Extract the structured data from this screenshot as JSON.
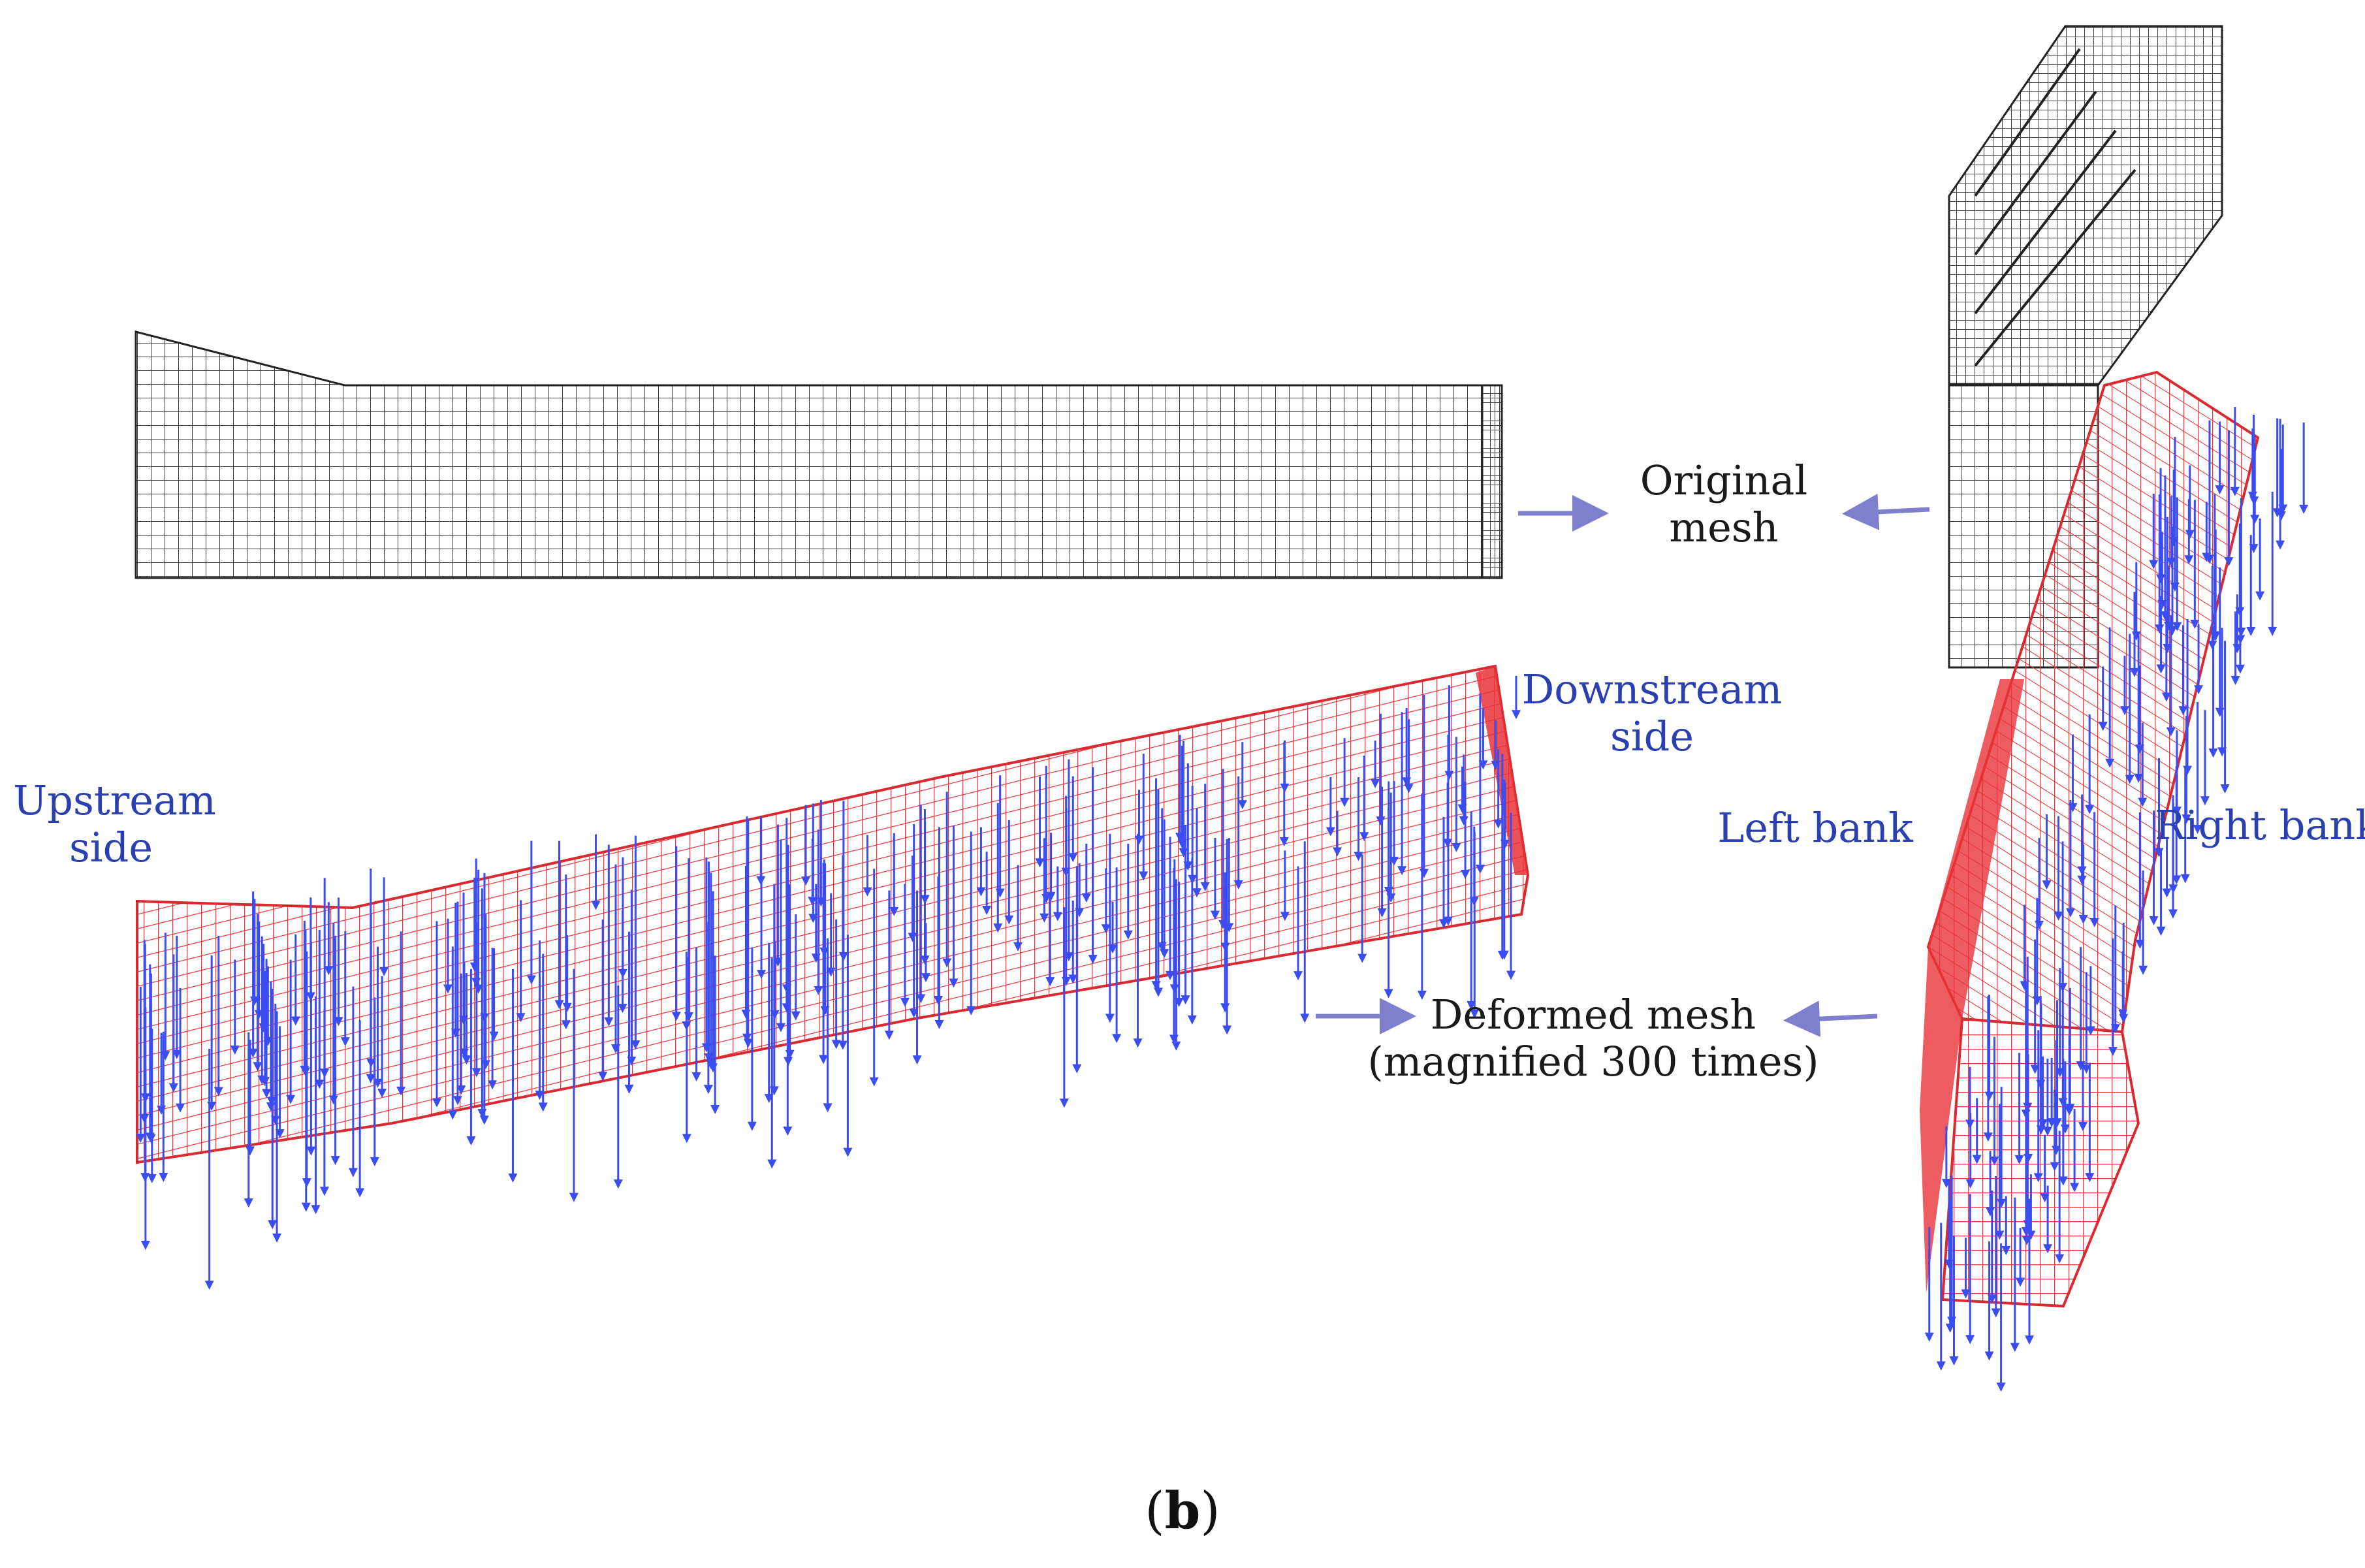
{
  "labels": {
    "original_mesh": [
      "Original",
      "mesh"
    ],
    "deformed_mesh": [
      "Deformed mesh",
      "(magnified 300 times)"
    ],
    "upstream_side": [
      "Upstream",
      "side"
    ],
    "downstream_side": [
      "Downstream",
      "side"
    ],
    "left_bank": "Left bank",
    "right_bank": "Right bank"
  },
  "caption": {
    "open": "(",
    "letter": "b",
    "close": ")"
  },
  "colors": {
    "original_mesh_line": "#3a3a3a",
    "deformed_mesh_line": "#e8333a",
    "displacement_arrow": "#3b4cf0",
    "pointer_arrow": "#7f7fce",
    "label_blue": "#2a3fb0"
  }
}
